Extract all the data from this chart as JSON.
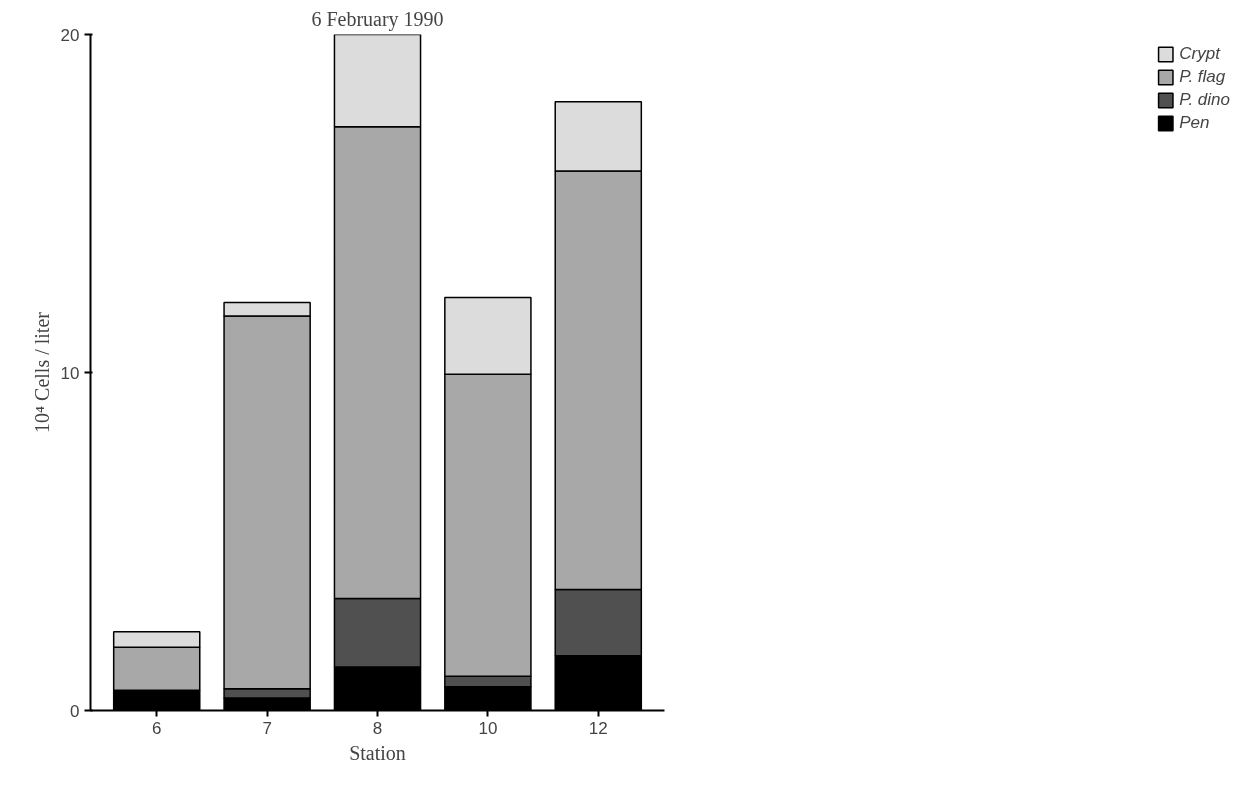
{
  "chart_data": {
    "type": "bar",
    "stacked": true,
    "title": "6 February 1990",
    "xlabel": "Station",
    "ylabel": "10⁴ Cells / liter",
    "categories": [
      "6",
      "7",
      "8",
      "10",
      "12"
    ],
    "series": [
      {
        "name": "Pen",
        "color": "#000000",
        "values": [
          0.6,
          0.37,
          1.29,
          0.7,
          1.62
        ]
      },
      {
        "name": "P. dino",
        "color": "#505050",
        "values": [
          0,
          0.27,
          2.02,
          0.31,
          1.96
        ]
      },
      {
        "name": "P. flag",
        "color": "#a8a8a8",
        "values": [
          1.27,
          11.03,
          13.96,
          8.94,
          12.38
        ]
      },
      {
        "name": "Crypt",
        "color": "#dcdcdc",
        "values": [
          0.46,
          0.4,
          2.73,
          2.27,
          2.05
        ]
      }
    ],
    "ylim": [
      0,
      20
    ],
    "yticks": [
      0,
      10,
      20
    ],
    "grid": false,
    "legend": "right"
  }
}
